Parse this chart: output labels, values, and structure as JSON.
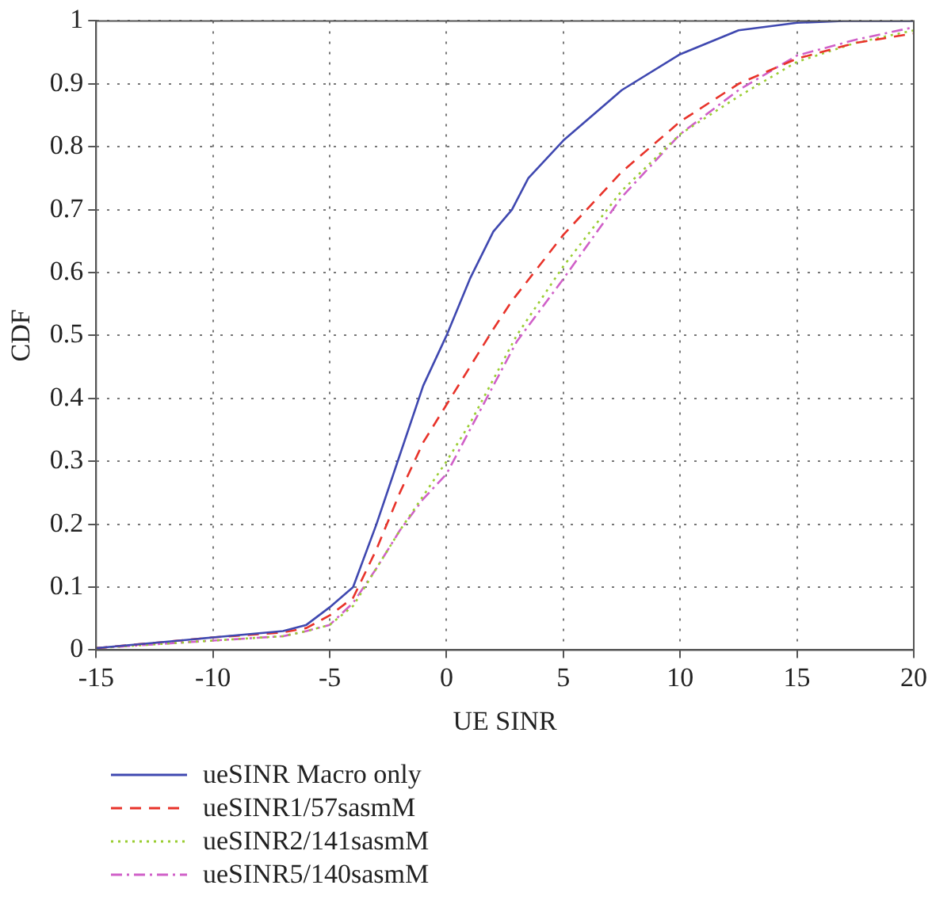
{
  "chart_data": {
    "type": "line",
    "xlabel": "UE SINR",
    "ylabel": "CDF",
    "xlim": [
      -15,
      20
    ],
    "xticks": [
      -15,
      -10,
      -5,
      0,
      5,
      10,
      15,
      20
    ],
    "ylim": [
      0,
      1
    ],
    "yticks": [
      0,
      0.1,
      0.2,
      0.3,
      0.4,
      0.5,
      0.6,
      0.7,
      0.8,
      0.9,
      1
    ],
    "grid": true,
    "legend": "bottom",
    "marker": "none",
    "series": [
      {
        "name": "ueSINR Macro only",
        "color": "#3f48b0",
        "line_style": "solid",
        "x": [
          -15,
          -10,
          -7,
          -6,
          -5,
          -4,
          -3,
          -2,
          -1,
          0,
          1,
          2,
          2.8,
          3.5,
          5,
          7.5,
          10,
          12.5,
          15,
          17,
          20
        ],
        "values": [
          0.003,
          0.02,
          0.03,
          0.04,
          0.068,
          0.1,
          0.2,
          0.31,
          0.42,
          0.5,
          0.59,
          0.665,
          0.7,
          0.75,
          0.81,
          0.89,
          0.947,
          0.985,
          0.997,
          1,
          1
        ]
      },
      {
        "name": "ueSINR1/57sasmM",
        "color": "#e8332a",
        "line_style": "dashed",
        "x": [
          -15,
          -10,
          -7,
          -6,
          -5,
          -4,
          -3,
          -2,
          -1,
          0,
          1,
          2,
          2.8,
          5,
          7.5,
          10,
          12.5,
          15,
          17.5,
          20
        ],
        "values": [
          0.003,
          0.02,
          0.028,
          0.035,
          0.055,
          0.083,
          0.16,
          0.25,
          0.33,
          0.39,
          0.45,
          0.51,
          0.555,
          0.66,
          0.76,
          0.84,
          0.9,
          0.94,
          0.965,
          0.98
        ]
      },
      {
        "name": "ueSINR2/141sasmM",
        "color": "#9acd32",
        "line_style": "dotted",
        "x": [
          -15,
          -10,
          -7,
          -6,
          -5,
          -4,
          -3,
          -2,
          -1,
          0,
          1,
          2,
          3,
          5,
          7.5,
          10,
          12.5,
          15,
          17.5,
          20
        ],
        "values": [
          0.003,
          0.015,
          0.022,
          0.03,
          0.04,
          0.07,
          0.13,
          0.19,
          0.245,
          0.3,
          0.36,
          0.43,
          0.5,
          0.61,
          0.73,
          0.82,
          0.88,
          0.935,
          0.965,
          0.985
        ]
      },
      {
        "name": "ueSINR5/140sasmM",
        "color": "#d060c8",
        "line_style": "dashdot",
        "x": [
          -15,
          -10,
          -7,
          -6,
          -5,
          -4,
          -3,
          -2,
          -1,
          0,
          1,
          2,
          3,
          5,
          7.5,
          10,
          12.5,
          15,
          17.5,
          20
        ],
        "values": [
          0.003,
          0.015,
          0.022,
          0.03,
          0.04,
          0.075,
          0.13,
          0.19,
          0.24,
          0.28,
          0.35,
          0.42,
          0.49,
          0.59,
          0.72,
          0.82,
          0.89,
          0.945,
          0.97,
          0.99
        ]
      }
    ]
  }
}
